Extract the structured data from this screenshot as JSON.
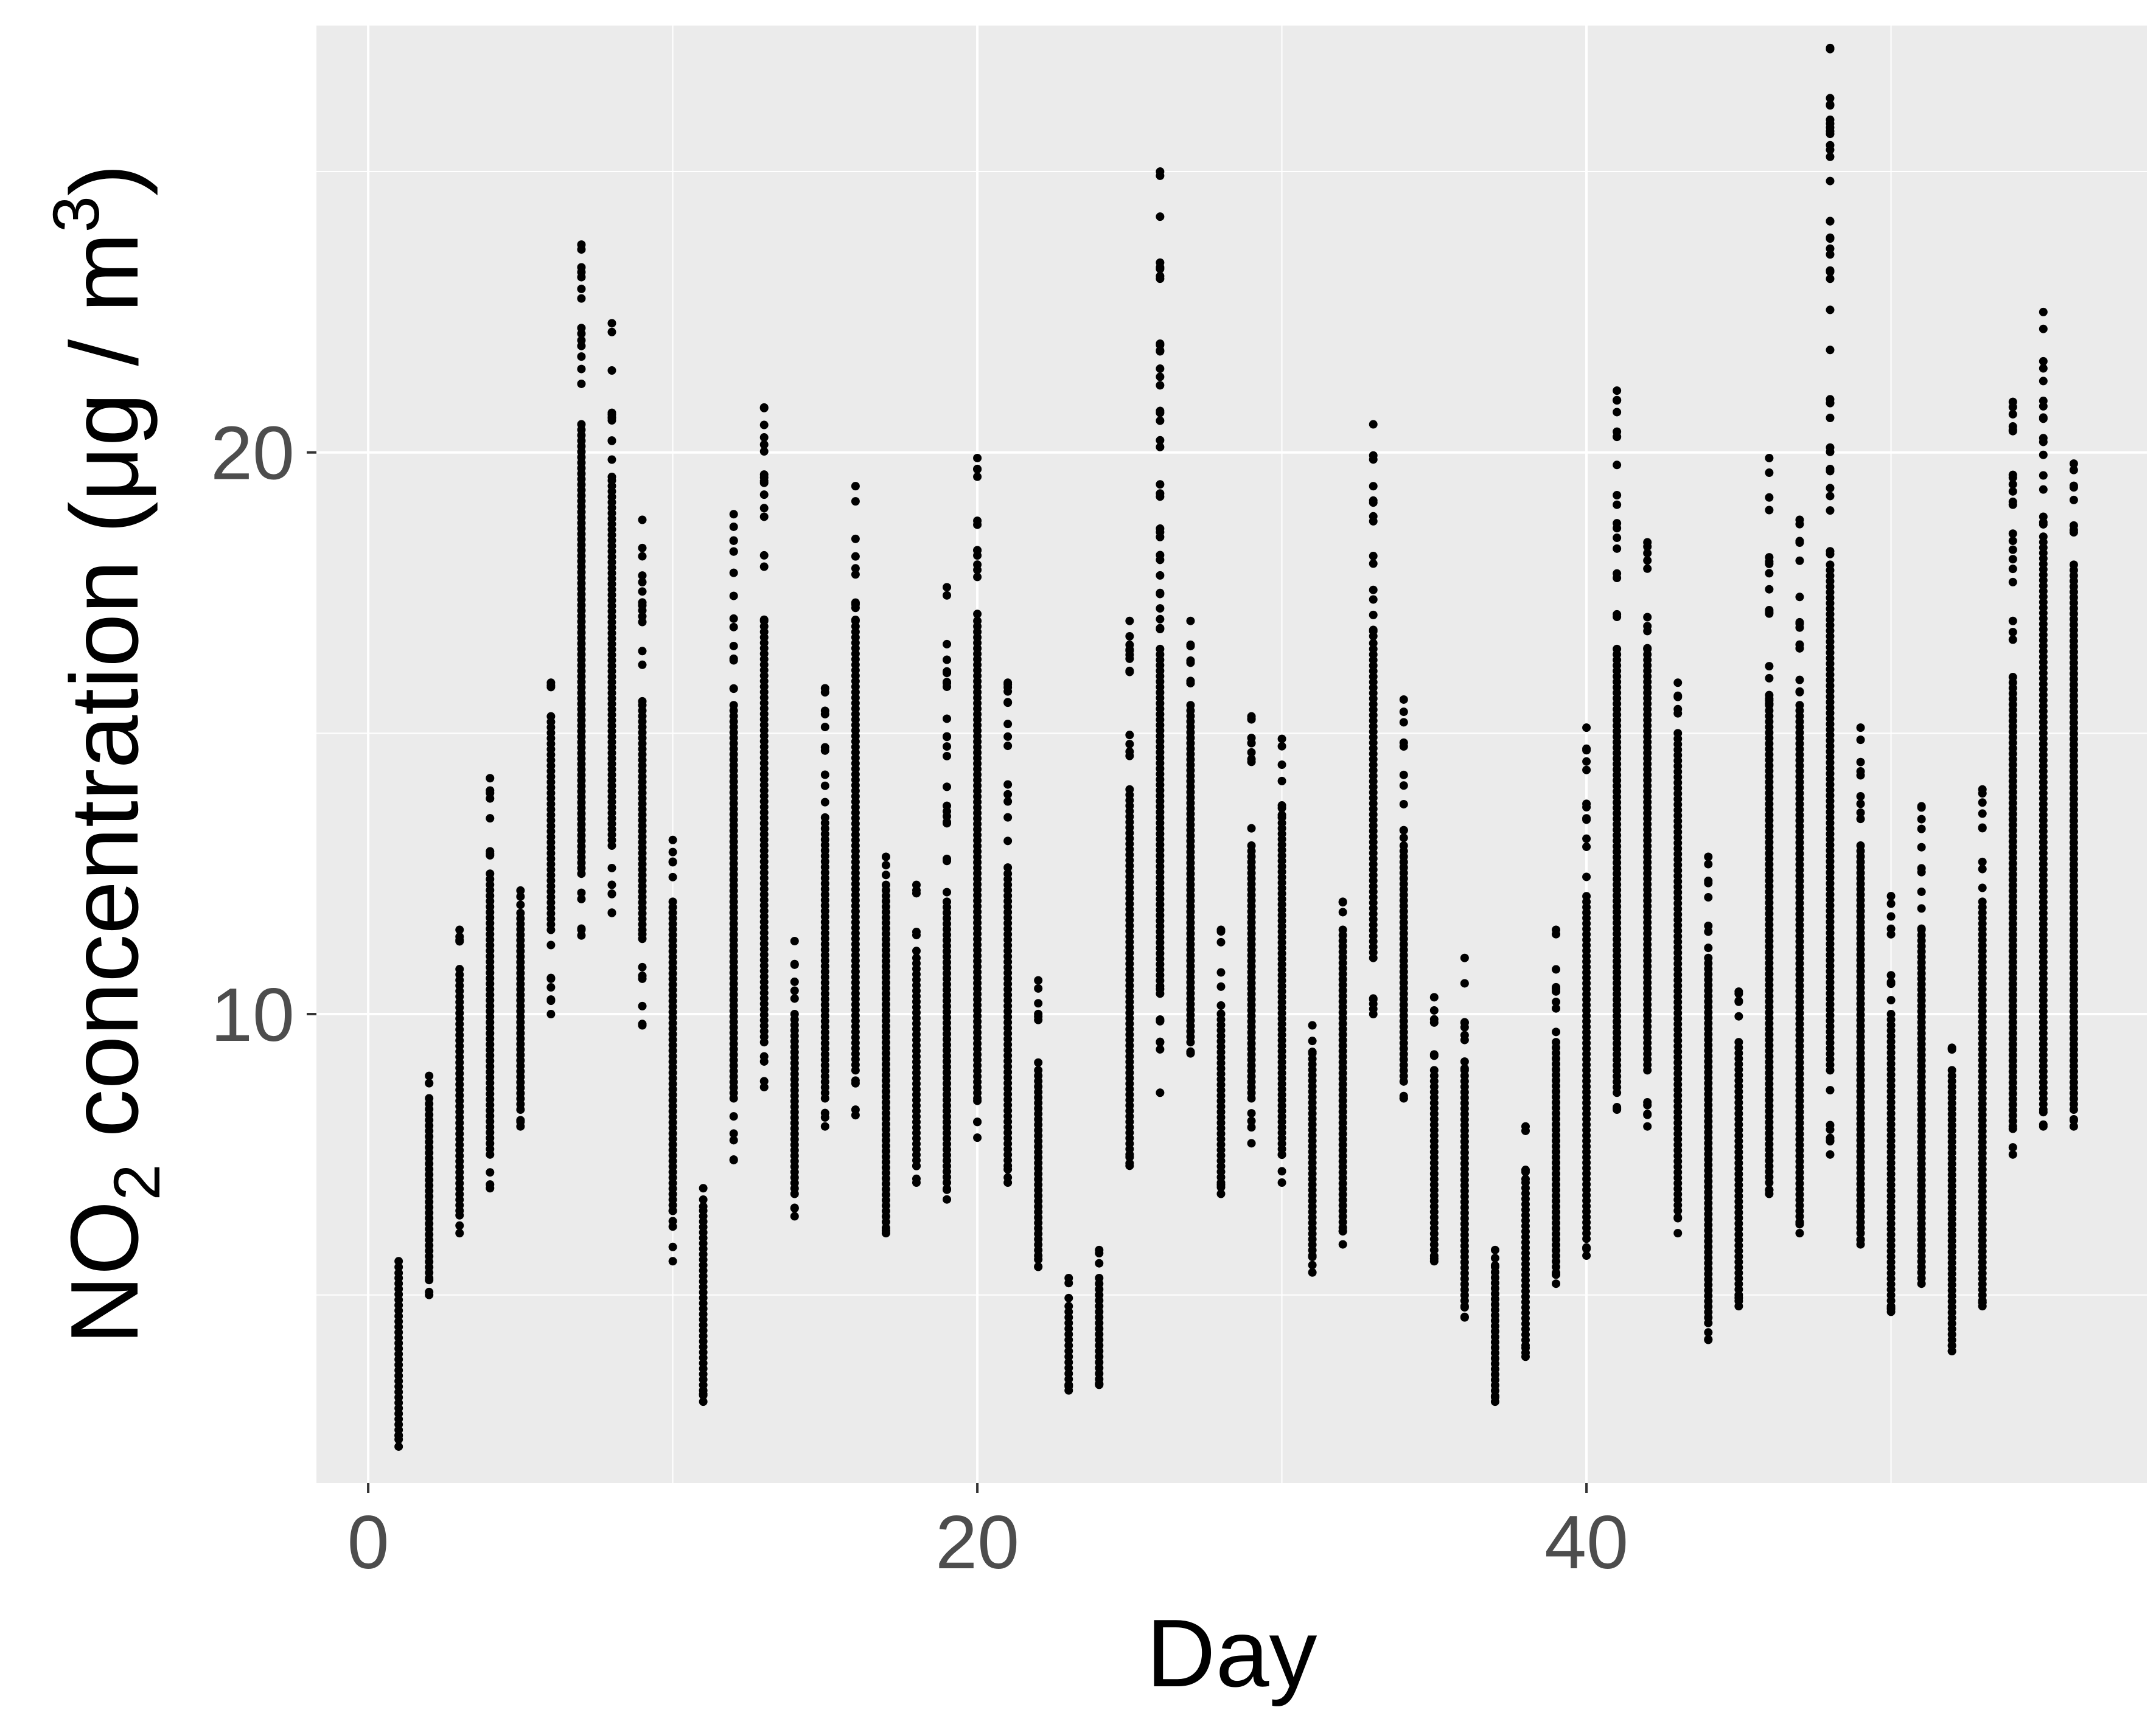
{
  "chart_data": {
    "type": "scatter",
    "xlabel": "Day",
    "ylabel": {
      "pre": "NO",
      "sub": "2",
      "mid": " concentration (μg / m",
      "sup": "3",
      "post": ")"
    },
    "xlim": [
      -1.7,
      58.4
    ],
    "ylim": [
      1.65,
      27.6
    ],
    "x_ticks": [
      0,
      20,
      40
    ],
    "y_ticks": [
      10,
      20
    ],
    "x_tick_labels": [
      "0",
      "20",
      "40"
    ],
    "y_tick_labels": [
      "10",
      "20"
    ],
    "grid": true,
    "point_color": "#000000",
    "panel_color": "#ebebeb",
    "days": [
      {
        "x": 1,
        "min": 2.3,
        "max": 5.6,
        "low": 2.5,
        "high": 5.3
      },
      {
        "x": 2,
        "min": 5.0,
        "max": 8.9,
        "low": 5.3,
        "high": 8.5
      },
      {
        "x": 3,
        "min": 6.1,
        "max": 11.5,
        "low": 6.5,
        "high": 10.8
      },
      {
        "x": 4,
        "min": 6.9,
        "max": 14.2,
        "low": 7.5,
        "high": 12.5
      },
      {
        "x": 5,
        "min": 8.0,
        "max": 12.2,
        "low": 8.3,
        "high": 11.8
      },
      {
        "x": 6,
        "min": 10.0,
        "max": 15.9,
        "low": 11.5,
        "high": 15.3
      },
      {
        "x": 7,
        "min": 11.4,
        "max": 23.7,
        "low": 12.5,
        "high": 20.5
      },
      {
        "x": 8,
        "min": 11.8,
        "max": 22.3,
        "low": 13.0,
        "high": 19.5
      },
      {
        "x": 9,
        "min": 9.8,
        "max": 18.8,
        "low": 11.5,
        "high": 15.5
      },
      {
        "x": 10,
        "min": 5.6,
        "max": 13.1,
        "low": 6.5,
        "high": 12.0
      },
      {
        "x": 11,
        "min": 3.1,
        "max": 6.9,
        "low": 3.3,
        "high": 6.5
      },
      {
        "x": 12,
        "min": 7.4,
        "max": 18.9,
        "low": 8.5,
        "high": 15.5
      },
      {
        "x": 13,
        "min": 8.7,
        "max": 20.8,
        "low": 9.5,
        "high": 17.0
      },
      {
        "x": 14,
        "min": 6.4,
        "max": 11.3,
        "low": 6.8,
        "high": 10.0
      },
      {
        "x": 15,
        "min": 8.0,
        "max": 15.8,
        "low": 8.5,
        "high": 13.5
      },
      {
        "x": 16,
        "min": 8.2,
        "max": 19.4,
        "low": 9.0,
        "high": 17.0
      },
      {
        "x": 17,
        "min": 6.1,
        "max": 12.8,
        "low": 6.3,
        "high": 12.3
      },
      {
        "x": 18,
        "min": 7.0,
        "max": 12.3,
        "low": 7.3,
        "high": 11.0
      },
      {
        "x": 19,
        "min": 6.7,
        "max": 17.6,
        "low": 7.0,
        "high": 12.0
      },
      {
        "x": 20,
        "min": 7.8,
        "max": 19.9,
        "low": 8.5,
        "high": 17.0
      },
      {
        "x": 21,
        "min": 7.0,
        "max": 15.9,
        "low": 7.3,
        "high": 12.5
      },
      {
        "x": 22,
        "min": 5.5,
        "max": 10.6,
        "low": 5.7,
        "high": 9.0
      },
      {
        "x": 23,
        "min": 3.3,
        "max": 5.3,
        "low": 3.4,
        "high": 4.8
      },
      {
        "x": 24,
        "min": 3.4,
        "max": 5.8,
        "low": 3.5,
        "high": 5.3
      },
      {
        "x": 25,
        "min": 7.3,
        "max": 17.0,
        "low": 7.5,
        "high": 14.0
      },
      {
        "x": 26,
        "min": 8.6,
        "max": 25.0,
        "low": 10.5,
        "high": 16.5
      },
      {
        "x": 27,
        "min": 9.3,
        "max": 17.0,
        "low": 9.5,
        "high": 15.5
      },
      {
        "x": 28,
        "min": 6.8,
        "max": 11.5,
        "low": 7.0,
        "high": 10.0
      },
      {
        "x": 29,
        "min": 7.7,
        "max": 15.3,
        "low": 8.5,
        "high": 13.0
      },
      {
        "x": 30,
        "min": 7.0,
        "max": 14.9,
        "low": 7.5,
        "high": 13.5
      },
      {
        "x": 31,
        "min": 5.4,
        "max": 9.8,
        "low": 5.7,
        "high": 9.3
      },
      {
        "x": 32,
        "min": 5.9,
        "max": 12.0,
        "low": 6.2,
        "high": 11.5
      },
      {
        "x": 33,
        "min": 10.0,
        "max": 20.5,
        "low": 11.0,
        "high": 16.5
      },
      {
        "x": 34,
        "min": 8.5,
        "max": 15.6,
        "low": 8.8,
        "high": 13.0
      },
      {
        "x": 35,
        "min": 5.6,
        "max": 10.3,
        "low": 5.8,
        "high": 9.0
      },
      {
        "x": 36,
        "min": 4.6,
        "max": 11.0,
        "low": 4.8,
        "high": 9.0
      },
      {
        "x": 37,
        "min": 3.1,
        "max": 5.8,
        "low": 3.2,
        "high": 5.5
      },
      {
        "x": 38,
        "min": 3.9,
        "max": 8.0,
        "low": 4.1,
        "high": 7.0
      },
      {
        "x": 39,
        "min": 5.2,
        "max": 11.5,
        "low": 5.5,
        "high": 9.5
      },
      {
        "x": 40,
        "min": 5.7,
        "max": 15.1,
        "low": 6.0,
        "high": 12.0
      },
      {
        "x": 41,
        "min": 8.3,
        "max": 21.1,
        "low": 8.6,
        "high": 16.5
      },
      {
        "x": 42,
        "min": 8.0,
        "max": 18.4,
        "low": 9.0,
        "high": 16.5
      },
      {
        "x": 43,
        "min": 6.1,
        "max": 15.9,
        "low": 6.5,
        "high": 15.0
      },
      {
        "x": 44,
        "min": 4.2,
        "max": 12.8,
        "low": 4.5,
        "high": 11.0
      },
      {
        "x": 45,
        "min": 4.8,
        "max": 10.4,
        "low": 5.0,
        "high": 9.5
      },
      {
        "x": 46,
        "min": 6.8,
        "max": 19.9,
        "low": 7.0,
        "high": 15.5
      },
      {
        "x": 47,
        "min": 6.1,
        "max": 18.8,
        "low": 6.3,
        "high": 15.5
      },
      {
        "x": 48,
        "min": 7.5,
        "max": 27.2,
        "low": 9.0,
        "high": 18.0
      },
      {
        "x": 49,
        "min": 5.9,
        "max": 15.1,
        "low": 6.1,
        "high": 13.0
      },
      {
        "x": 50,
        "min": 4.7,
        "max": 12.1,
        "low": 4.8,
        "high": 10.0
      },
      {
        "x": 51,
        "min": 5.2,
        "max": 13.7,
        "low": 5.4,
        "high": 11.5
      },
      {
        "x": 52,
        "min": 4.0,
        "max": 9.4,
        "low": 4.1,
        "high": 9.0
      },
      {
        "x": 53,
        "min": 4.8,
        "max": 14.0,
        "low": 4.9,
        "high": 12.0
      },
      {
        "x": 54,
        "min": 7.5,
        "max": 20.9,
        "low": 8.0,
        "high": 16.0
      },
      {
        "x": 55,
        "min": 8.0,
        "max": 22.5,
        "low": 8.3,
        "high": 18.5
      },
      {
        "x": 56,
        "min": 8.0,
        "max": 19.8,
        "low": 8.3,
        "high": 18.0
      }
    ]
  }
}
